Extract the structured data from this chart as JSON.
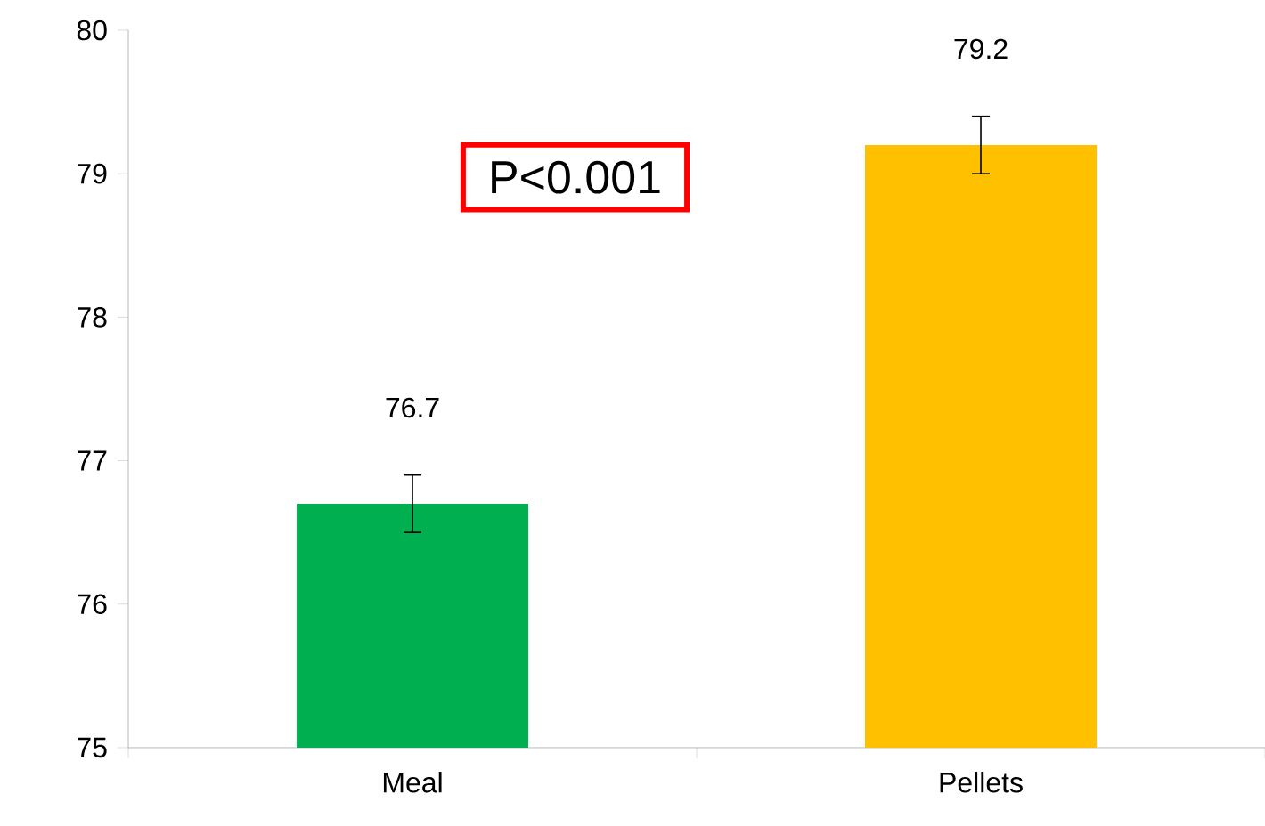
{
  "chart_data": {
    "type": "bar",
    "categories": [
      "Meal",
      "Pellets"
    ],
    "values": [
      76.7,
      79.2
    ],
    "colors": [
      "#00b050",
      "#ffc000"
    ],
    "errors": [
      0.2,
      0.2
    ],
    "data_labels": true,
    "ylim": [
      75,
      80
    ],
    "yticks": [
      75,
      76,
      77,
      78,
      79,
      80
    ],
    "annotations": [
      "P<0.001"
    ]
  }
}
